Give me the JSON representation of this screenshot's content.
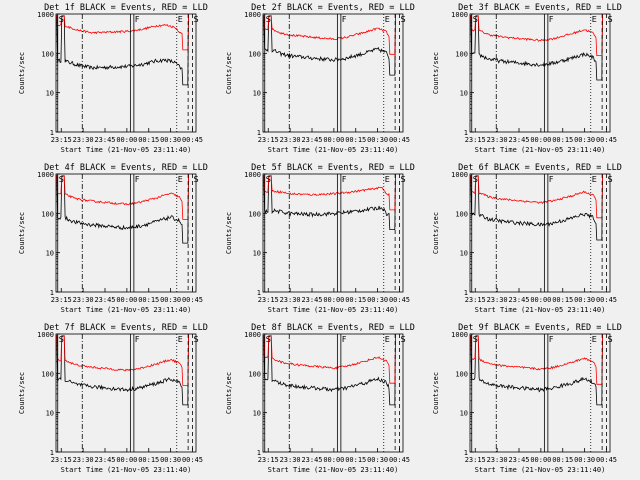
{
  "chart_data": [
    {
      "type": "line",
      "title": "Det 1f BLACK = Events, RED = LLD",
      "xlabel": "Start Time (21-Nov-05 23:11:40)",
      "ylabel": "Counts/sec",
      "series": [
        {
          "name": "Events",
          "color": "#000000",
          "shape": "a",
          "level": 45
        },
        {
          "name": "LLD",
          "color": "#ff0000",
          "shape": "a",
          "level": 350
        }
      ]
    },
    {
      "type": "line",
      "title": "Det 2f BLACK = Events, RED = LLD",
      "xlabel": "Start Time (21-Nov-05 23:11:40)",
      "ylabel": "Counts/sec",
      "series": [
        {
          "name": "Events",
          "color": "#000000",
          "shape": "b",
          "level": 80
        },
        {
          "name": "LLD",
          "color": "#ff0000",
          "shape": "b",
          "level": 270
        }
      ]
    },
    {
      "type": "line",
      "title": "Det 3f BLACK = Events, RED = LLD",
      "xlabel": "Start Time (21-Nov-05 23:11:40)",
      "ylabel": "Counts/sec",
      "series": [
        {
          "name": "Events",
          "color": "#000000",
          "shape": "b",
          "level": 60
        },
        {
          "name": "LLD",
          "color": "#ff0000",
          "shape": "b",
          "level": 250
        }
      ]
    },
    {
      "type": "line",
      "title": "Det 4f BLACK = Events, RED = LLD",
      "xlabel": "Start Time (21-Nov-05 23:11:40)",
      "ylabel": "Counts/sec",
      "series": [
        {
          "name": "Events",
          "color": "#000000",
          "shape": "b",
          "level": 50
        },
        {
          "name": "LLD",
          "color": "#ff0000",
          "shape": "b",
          "level": 200
        }
      ]
    },
    {
      "type": "line",
      "title": "Det 5f BLACK = Events, RED = LLD",
      "xlabel": "Start Time (21-Nov-05 23:11:40)",
      "ylabel": "Counts/sec",
      "series": [
        {
          "name": "Events",
          "color": "#000000",
          "shape": "c",
          "level": 110
        },
        {
          "name": "LLD",
          "color": "#ff0000",
          "shape": "c",
          "level": 350
        }
      ]
    },
    {
      "type": "line",
      "title": "Det 6f BLACK = Events, RED = LLD",
      "xlabel": "Start Time (21-Nov-05 23:11:40)",
      "ylabel": "Counts/sec",
      "series": [
        {
          "name": "Events",
          "color": "#000000",
          "shape": "b",
          "level": 60
        },
        {
          "name": "LLD",
          "color": "#ff0000",
          "shape": "b",
          "level": 220
        }
      ]
    },
    {
      "type": "line",
      "title": "Det 7f BLACK = Events, RED = LLD",
      "xlabel": "Start Time (21-Nov-05 23:11:40)",
      "ylabel": "Counts/sec",
      "series": [
        {
          "name": "Events",
          "color": "#000000",
          "shape": "b",
          "level": 45
        },
        {
          "name": "LLD",
          "color": "#ff0000",
          "shape": "b",
          "level": 140
        }
      ]
    },
    {
      "type": "line",
      "title": "Det 8f BLACK = Events, RED = LLD",
      "xlabel": "Start Time (21-Nov-05 23:11:40)",
      "ylabel": "Counts/sec",
      "series": [
        {
          "name": "Events",
          "color": "#000000",
          "shape": "b",
          "level": 45
        },
        {
          "name": "LLD",
          "color": "#ff0000",
          "shape": "b",
          "level": 160
        }
      ]
    },
    {
      "type": "line",
      "title": "Det 9f BLACK = Events, RED = LLD",
      "xlabel": "Start Time (21-Nov-05 23:11:40)",
      "ylabel": "Counts/sec",
      "series": [
        {
          "name": "Events",
          "color": "#000000",
          "shape": "b",
          "level": 45
        },
        {
          "name": "LLD",
          "color": "#ff0000",
          "shape": "b",
          "level": 150
        }
      ]
    }
  ],
  "shared": {
    "x_range_hours": [
      23.19,
      24.79
    ],
    "x_ticks": [
      {
        "t": 23.25,
        "label": "23:15"
      },
      {
        "t": 23.5,
        "label": "23:30"
      },
      {
        "t": 23.75,
        "label": "23:45"
      },
      {
        "t": 24.0,
        "label": "00:00"
      },
      {
        "t": 24.25,
        "label": "00:15"
      },
      {
        "t": 24.5,
        "label": "00:30"
      },
      {
        "t": 24.75,
        "label": "00:45"
      }
    ],
    "y_range": [
      1,
      1000
    ],
    "y_scale": "log",
    "y_ticks": [
      {
        "v": 1,
        "label": "1"
      },
      {
        "v": 10,
        "label": "10"
      },
      {
        "v": 100,
        "label": "100"
      },
      {
        "v": 1000,
        "label": "1000"
      }
    ],
    "markers": [
      {
        "label": "S",
        "t": 23.21,
        "style": "solid"
      },
      {
        "label": "",
        "t": 23.49,
        "style": "dashdot"
      },
      {
        "label": "",
        "t": 24.04,
        "style": "solid"
      },
      {
        "label": "F",
        "t": 24.08,
        "style": "solid"
      },
      {
        "label": "E",
        "t": 24.57,
        "style": "dotted"
      },
      {
        "label": "",
        "t": 24.7,
        "style": "dashed"
      },
      {
        "label": "S",
        "t": 24.75,
        "style": "dashed"
      }
    ]
  }
}
